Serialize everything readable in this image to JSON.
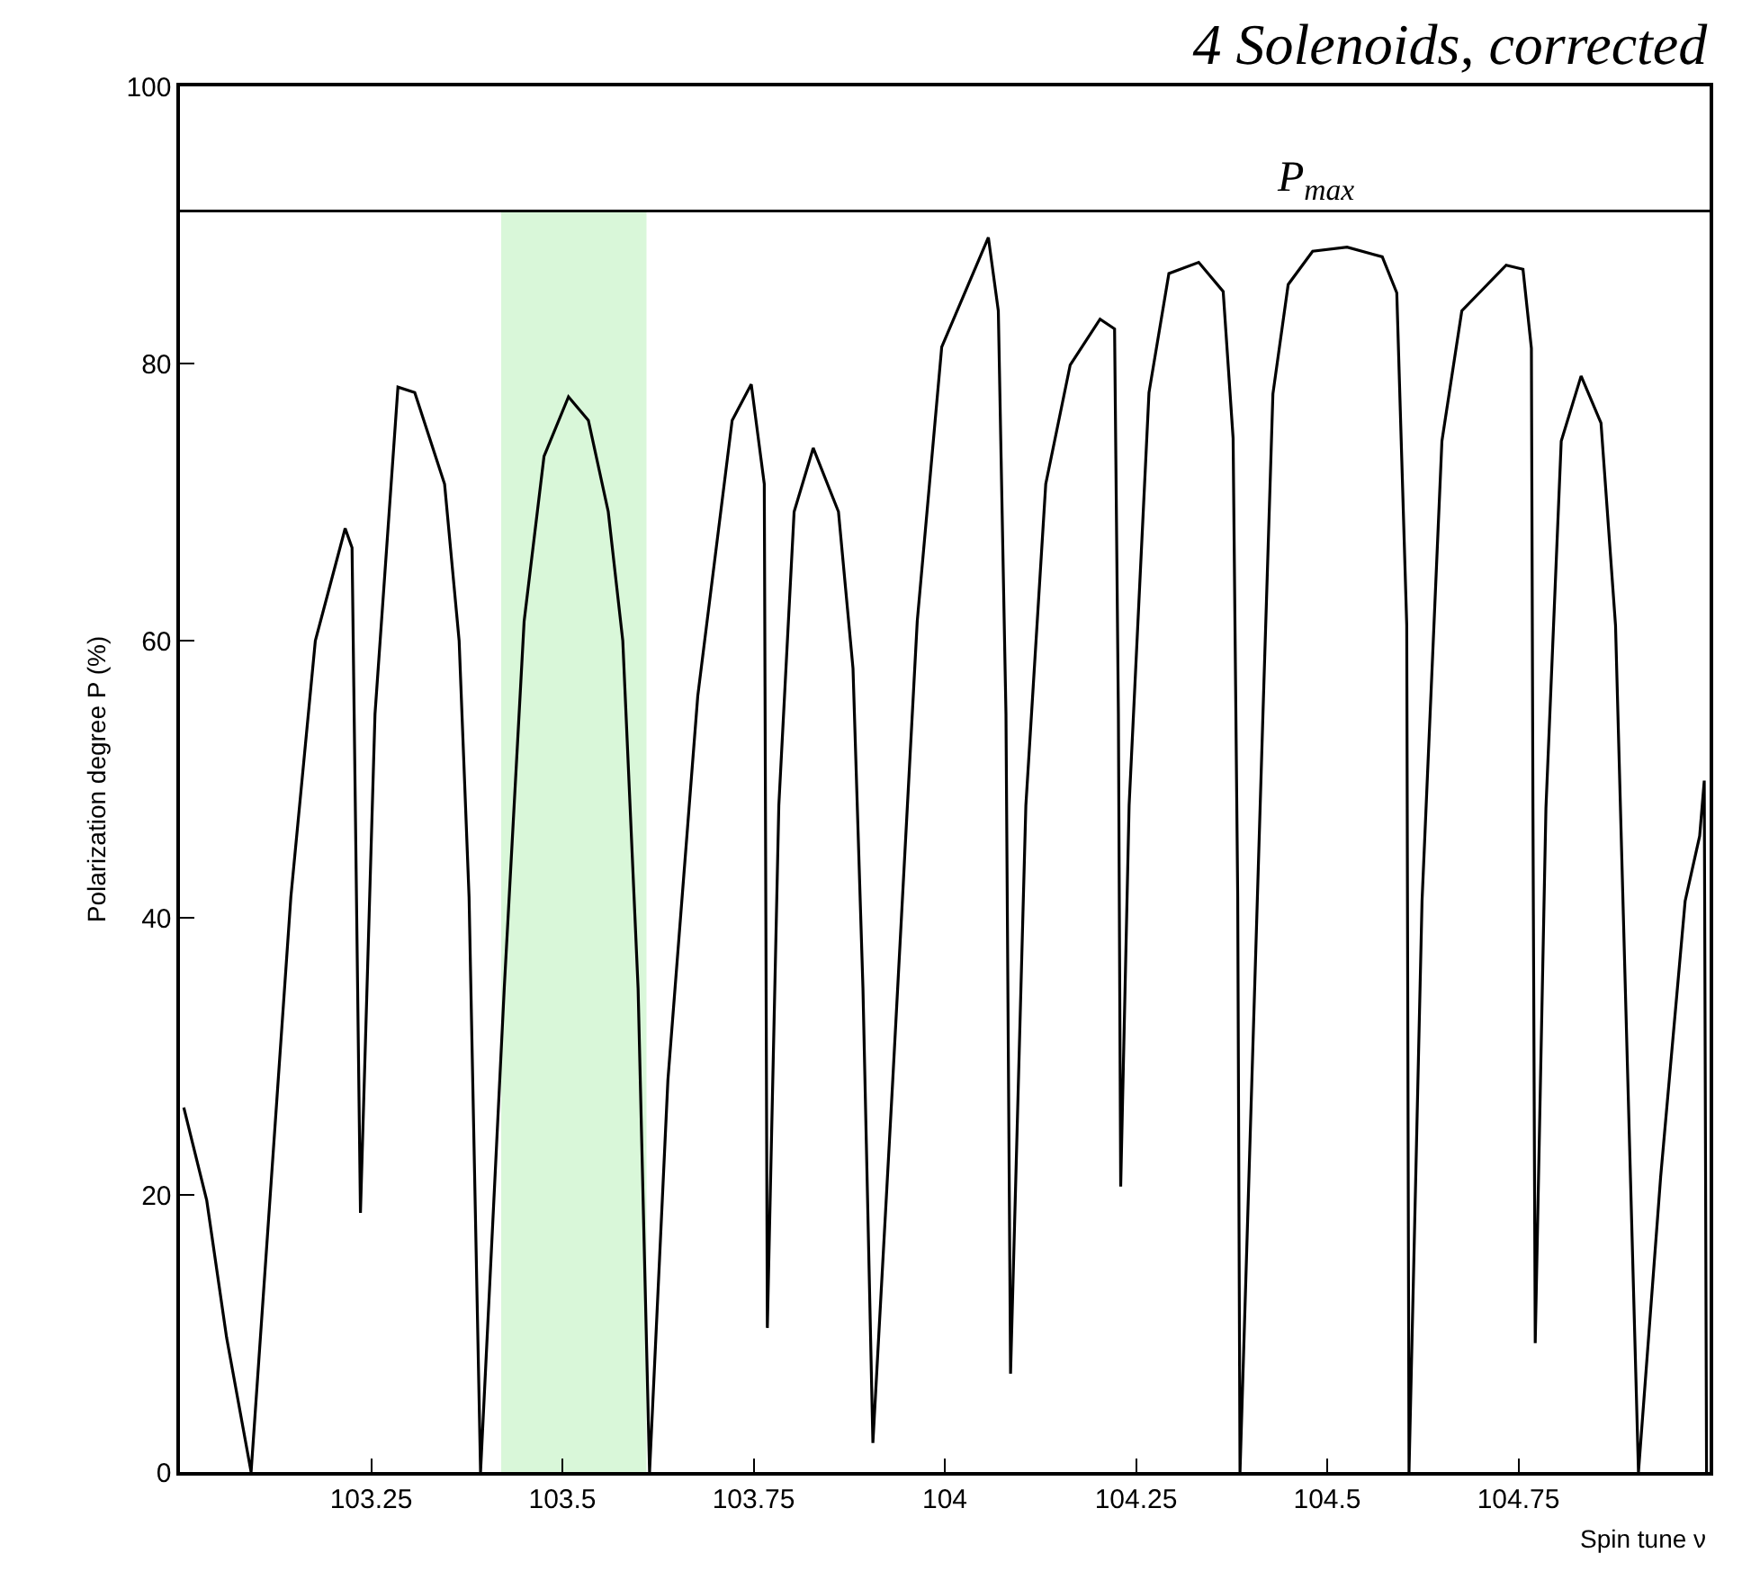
{
  "chart_data": {
    "type": "line",
    "title": "4 Solenoids, corrected",
    "xlabel": "Spin tune ν",
    "ylabel": "Polarization degree P (%)",
    "x": [
      103.005,
      103.035,
      103.061,
      103.093,
      103.145,
      103.177,
      103.216,
      103.225,
      103.236,
      103.255,
      103.285,
      103.307,
      103.346,
      103.365,
      103.378,
      103.393,
      103.424,
      103.45,
      103.476,
      103.508,
      103.534,
      103.56,
      103.579,
      103.599,
      103.614,
      103.638,
      103.677,
      103.722,
      103.747,
      103.764,
      103.768,
      103.783,
      103.803,
      103.828,
      103.861,
      103.88,
      103.893,
      103.906,
      103.932,
      103.964,
      103.996,
      104.057,
      104.07,
      104.08,
      104.086,
      104.106,
      104.132,
      104.164,
      104.203,
      104.222,
      104.227,
      104.23,
      104.241,
      104.267,
      104.293,
      104.332,
      104.364,
      104.377,
      104.383,
      104.386,
      104.416,
      104.429,
      104.449,
      104.481,
      104.526,
      104.572,
      104.591,
      104.604,
      104.607,
      104.624,
      104.65,
      104.676,
      104.734,
      104.756,
      104.767,
      104.769,
      104.772,
      104.786,
      104.806,
      104.832,
      104.858,
      104.877,
      104.89,
      104.907,
      104.936,
      104.968,
      104.987,
      104.993,
      104.996
    ],
    "series": [
      {
        "color": "#000000",
        "values": [
          26.3,
          19.6,
          9.7,
          0,
          41.5,
          60,
          68.1,
          66.7,
          18.7,
          54.7,
          78.3,
          77.9,
          71.3,
          60,
          41.5,
          0,
          34.9,
          61.4,
          73.3,
          77.6,
          75.9,
          69.3,
          60,
          34.9,
          0,
          28.3,
          56,
          75.9,
          78.5,
          71.3,
          10.4,
          48.1,
          69.3,
          73.9,
          69.3,
          58,
          34.9,
          2.1,
          28.3,
          61.4,
          81.2,
          89.1,
          83.8,
          54.7,
          7.1,
          48.1,
          71.3,
          79.9,
          83.2,
          82.5,
          54.7,
          20.6,
          48.1,
          77.9,
          86.5,
          87.3,
          85.2,
          74.6,
          41.5,
          0,
          54.7,
          77.8,
          85.7,
          88.1,
          88.4,
          87.7,
          85.1,
          61.1,
          0,
          41.2,
          74.4,
          83.8,
          87.1,
          86.8,
          81.1,
          47.9,
          9.3,
          47.9,
          74.4,
          79.1,
          75.7,
          61.1,
          34.5,
          0,
          21.3,
          41.2,
          45.9,
          49.9,
          0
        ]
      }
    ],
    "xlim": [
      103,
      105
    ],
    "xticks": [
      103.25,
      103.5,
      103.75,
      104,
      104.25,
      104.5,
      104.75
    ],
    "ylim": [
      0,
      100
    ],
    "yticks": [
      0,
      20,
      40,
      60,
      80,
      100
    ],
    "ref_lines": [
      {
        "axis": "y",
        "value": 91,
        "label": "P$_{max}$",
        "color": "#000000"
      }
    ],
    "bands": [
      {
        "axis": "x",
        "from": 103.42,
        "to": 103.61,
        "color": "#d9f7d9"
      }
    ],
    "grid": false,
    "marker": "none",
    "line_style": "solid"
  }
}
